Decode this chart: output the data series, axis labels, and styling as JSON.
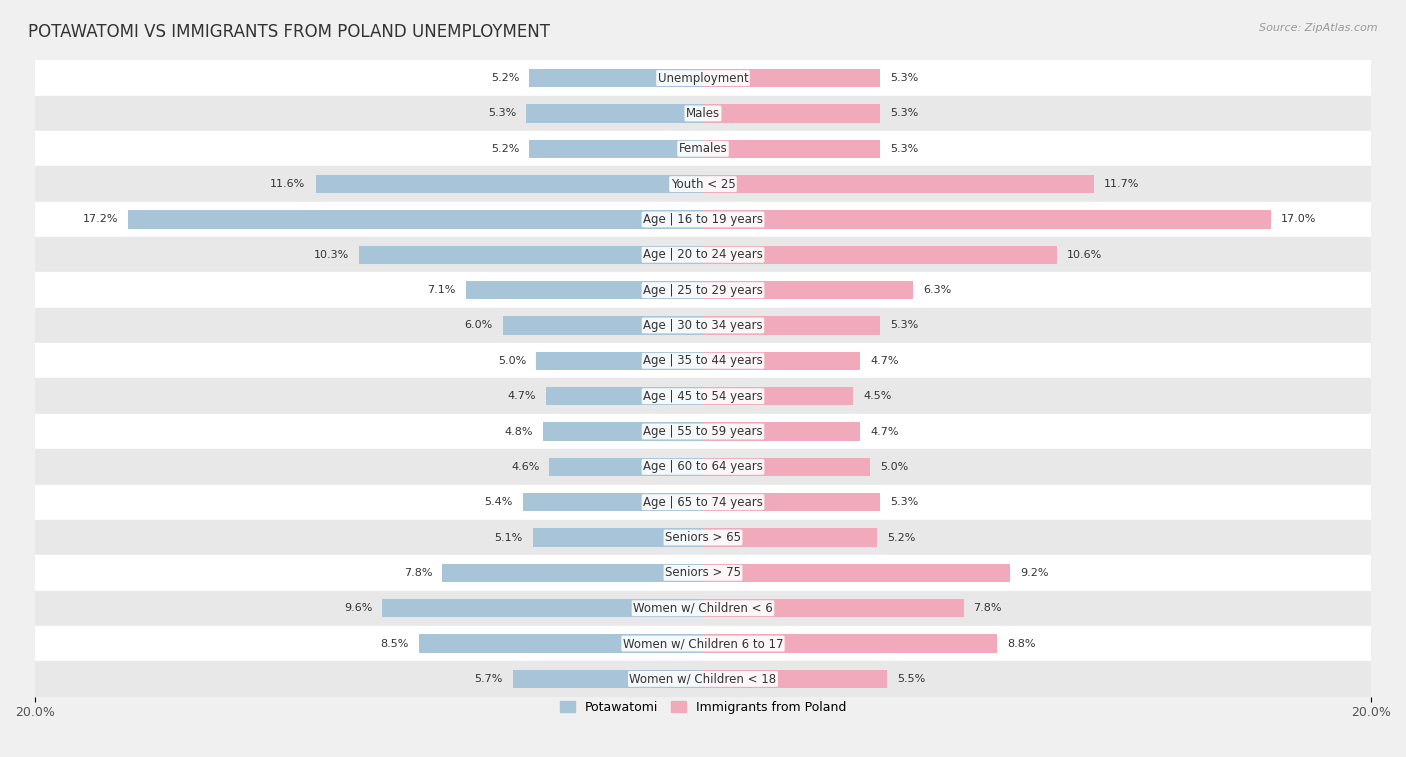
{
  "title": "POTAWATOMI VS IMMIGRANTS FROM POLAND UNEMPLOYMENT",
  "source": "Source: ZipAtlas.com",
  "categories": [
    "Unemployment",
    "Males",
    "Females",
    "Youth < 25",
    "Age | 16 to 19 years",
    "Age | 20 to 24 years",
    "Age | 25 to 29 years",
    "Age | 30 to 34 years",
    "Age | 35 to 44 years",
    "Age | 45 to 54 years",
    "Age | 55 to 59 years",
    "Age | 60 to 64 years",
    "Age | 65 to 74 years",
    "Seniors > 65",
    "Seniors > 75",
    "Women w/ Children < 6",
    "Women w/ Children 6 to 17",
    "Women w/ Children < 18"
  ],
  "potawatomi": [
    5.2,
    5.3,
    5.2,
    11.6,
    17.2,
    10.3,
    7.1,
    6.0,
    5.0,
    4.7,
    4.8,
    4.6,
    5.4,
    5.1,
    7.8,
    9.6,
    8.5,
    5.7
  ],
  "poland": [
    5.3,
    5.3,
    5.3,
    11.7,
    17.0,
    10.6,
    6.3,
    5.3,
    4.7,
    4.5,
    4.7,
    5.0,
    5.3,
    5.2,
    9.2,
    7.8,
    8.8,
    5.5
  ],
  "xlim": 20.0,
  "blue_color": "#a8c4d8",
  "pink_color": "#f0aabb",
  "bg_color": "#f0f0f0",
  "row_light": "#ffffff",
  "row_dark": "#e8e8e8",
  "bar_height": 0.52,
  "title_fontsize": 12,
  "label_fontsize": 8.5,
  "value_fontsize": 8.0,
  "legend_fontsize": 9
}
